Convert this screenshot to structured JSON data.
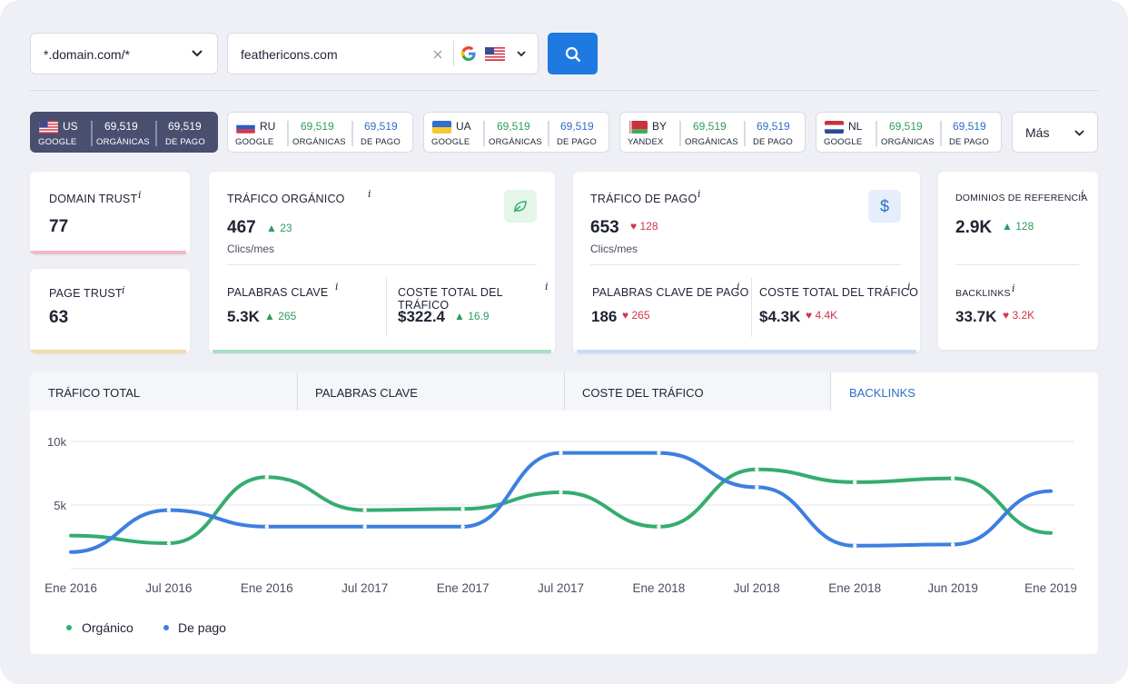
{
  "search": {
    "pattern": "*.domain.com/*",
    "domain": "feathericons.com"
  },
  "regions": [
    {
      "cc": "US",
      "engine": "GOOGLE",
      "organic": "69,519",
      "organic_label": "ORGÁNICAS",
      "paid": "69,519",
      "paid_label": "DE PAGO",
      "active": true
    },
    {
      "cc": "RU",
      "engine": "GOOGLE",
      "organic": "69,519",
      "organic_label": "ORGÁNICAS",
      "paid": "69,519",
      "paid_label": "DE PAGO",
      "active": false
    },
    {
      "cc": "UA",
      "engine": "GOOGLE",
      "organic": "69,519",
      "organic_label": "ORGÁNICAS",
      "paid": "69,519",
      "paid_label": "DE PAGO",
      "active": false
    },
    {
      "cc": "BY",
      "engine": "YANDEX",
      "organic": "69,519",
      "organic_label": "ORGÁNICAS",
      "paid": "69,519",
      "paid_label": "DE PAGO",
      "active": false
    },
    {
      "cc": "NL",
      "engine": "GOOGLE",
      "organic": "69,519",
      "organic_label": "ORGÁNICAS",
      "paid": "69,519",
      "paid_label": "DE PAGO",
      "active": false
    }
  ],
  "more_label": "Más",
  "domain_trust": {
    "label": "DOMAIN TRUST",
    "value": "77"
  },
  "page_trust": {
    "label": "PAGE TRUST",
    "value": "63"
  },
  "organic": {
    "label": "TRÁFICO ORGÁNICO",
    "value": "467",
    "delta": "23",
    "unit": "Clics/mes",
    "kw_label": "PALABRAS CLAVE",
    "kw_value": "5.3K",
    "kw_delta": "265",
    "cost_label": "COSTE TOTAL DEL TRÁFICO",
    "cost_value": "$322.4",
    "cost_delta": "16.9"
  },
  "paid": {
    "label": "TRÁFICO DE PAGO",
    "value": "653",
    "delta": "128",
    "unit": "Clics/mes",
    "kw_label": "PALABRAS CLAVE DE PAGO",
    "kw_value": "186",
    "kw_delta": "265",
    "cost_label": "COSTE TOTAL DEL TRÁFICO",
    "cost_value": "$4.3K",
    "cost_delta": "4.4K"
  },
  "refs": {
    "label": "DOMINIOS DE REFERENCIA",
    "value": "2.9K",
    "delta": "128",
    "bl_label": "BACKLINKS",
    "bl_value": "33.7K",
    "bl_delta": "3.2K"
  },
  "info_glyph": "i",
  "tabs": [
    "TRÁFICO TOTAL",
    "PALABRAS CLAVE",
    "COSTE DEL TRÁFICO",
    "BACKLINKS"
  ],
  "colors": {
    "organic": "#34ad6f",
    "paid": "#3d7fe0",
    "active_tab": "#2c6fc9",
    "accent": "#1e7ae0"
  },
  "chart_data": {
    "type": "line",
    "x": [
      "Ene 2016",
      "Jul 2016",
      "Ene 2016",
      "Jul 2017",
      "Ene 2017",
      "Jul 2017",
      "Ene 2018",
      "Jul 2018",
      "Ene 2018",
      "Jun 2019",
      "Ene 2019"
    ],
    "y_ticks": [
      "10k",
      "5k"
    ],
    "ylim": [
      0,
      10000
    ],
    "series": [
      {
        "name": "Orgánico",
        "values": [
          2600,
          2000,
          7200,
          4600,
          4700,
          6000,
          3300,
          7800,
          6800,
          7100,
          2800
        ]
      },
      {
        "name": "De pago",
        "values": [
          1300,
          4600,
          3300,
          3300,
          3300,
          9100,
          9100,
          6400,
          1800,
          1900,
          6100
        ]
      }
    ]
  }
}
